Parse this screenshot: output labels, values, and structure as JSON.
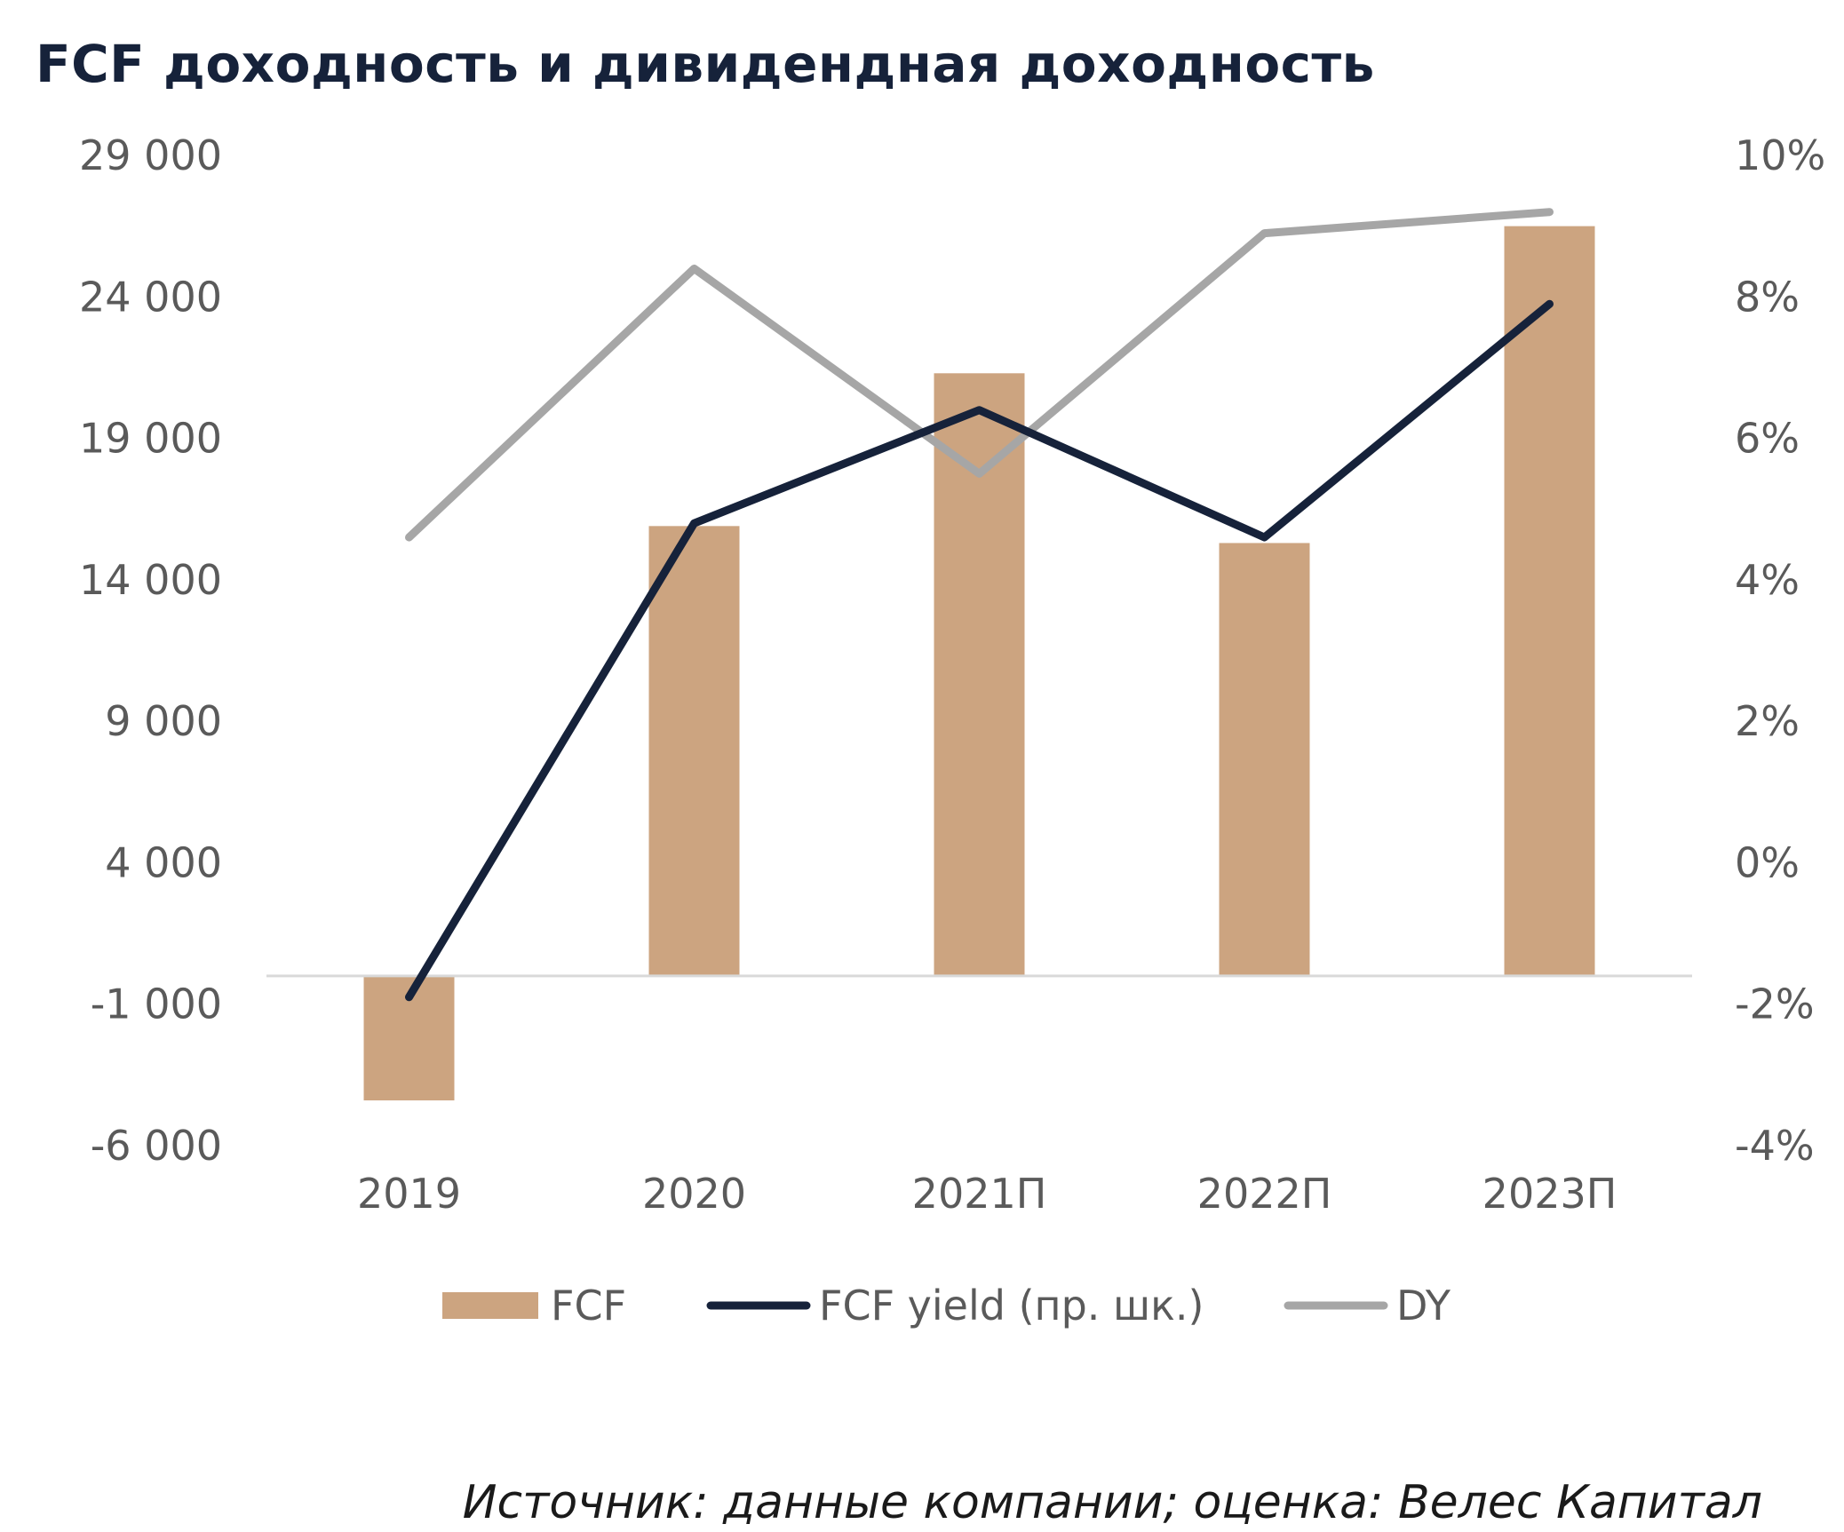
{
  "title": "FCF доходность и дивидендная доходность",
  "source": "Источник: данные компании; оценка: Велес Капитал",
  "colors": {
    "fcf": "#cca480",
    "fcf_yield": "#16223a",
    "dy": "#a6a6a6",
    "axis": "#d9d9d9",
    "text": "#5a5a5a"
  },
  "chart_data": {
    "type": "bar",
    "categories": [
      "2019",
      "2020",
      "2021П",
      "2022П",
      "2023П"
    ],
    "series": [
      {
        "name": "FCF",
        "type": "bar",
        "axis": "left",
        "values": [
          -4400,
          15900,
          21300,
          15300,
          26500
        ]
      },
      {
        "name": "FCF yield (пр. шк.)",
        "type": "line",
        "axis": "right",
        "values": [
          -1.9,
          4.8,
          6.4,
          4.6,
          7.9
        ]
      },
      {
        "name": "DY",
        "type": "line",
        "axis": "right",
        "values": [
          4.6,
          8.4,
          5.5,
          8.9,
          9.2
        ]
      }
    ],
    "y_left": {
      "ylim": [
        -6000,
        29000
      ],
      "ticks": [
        29000,
        24000,
        19000,
        14000,
        9000,
        4000,
        -1000,
        -6000
      ],
      "tick_labels": [
        "29 000",
        "24 000",
        "19 000",
        "14 000",
        "9 000",
        "4 000",
        "-1 000",
        "-6 000"
      ]
    },
    "y_right": {
      "ylim": [
        -4,
        10
      ],
      "ticks": [
        10,
        8,
        6,
        4,
        2,
        0,
        -2,
        -4
      ],
      "tick_labels": [
        "10%",
        "8%",
        "6%",
        "4%",
        "2%",
        "0%",
        "-2%",
        "-4%"
      ]
    },
    "legend": {
      "position": "bottom",
      "items": [
        "FCF",
        "FCF yield (пр. шк.)",
        "DY"
      ]
    },
    "grid": false
  }
}
